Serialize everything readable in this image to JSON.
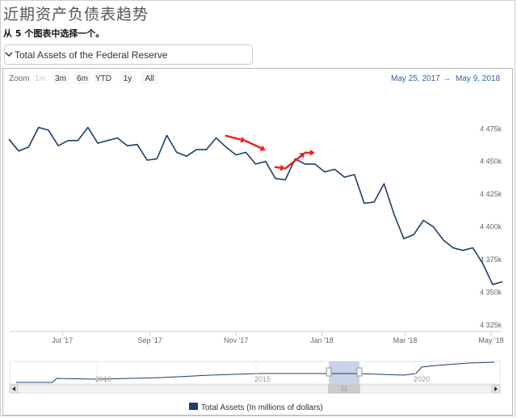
{
  "page": {
    "title": "近期资产负债表趋势",
    "subtitle": "从 5 个图表中选择一个。"
  },
  "selector": {
    "selected": "Total Assets of the Federal Reserve"
  },
  "range_selector": {
    "zoom_label": "Zoom",
    "buttons": [
      {
        "label": "1m",
        "enabled": false
      },
      {
        "label": "3m",
        "enabled": true
      },
      {
        "label": "6m",
        "enabled": true
      },
      {
        "label": "YTD",
        "enabled": true
      },
      {
        "label": "1y",
        "enabled": true
      },
      {
        "label": "All",
        "enabled": true
      }
    ],
    "from": "May 25, 2017",
    "arrow": "→",
    "to": "May 9, 2018"
  },
  "colors": {
    "series": "#1b3f6a",
    "annotation_arrow": "#e8231c",
    "range_text": "#335cad",
    "navigator_mask": "#c9d3e6"
  },
  "chart_data": {
    "type": "line",
    "xlabel": "",
    "ylabel": "",
    "x_ticks": [
      "Jul '17",
      "Sep '17",
      "Nov '17",
      "Jan '18",
      "Mar '18",
      "May '18"
    ],
    "y_ticks": [
      "4 325k",
      "4 350k",
      "4 375k",
      "4 400k",
      "4 425k",
      "4 450k",
      "4 475k"
    ],
    "ylim": [
      4320,
      4490
    ],
    "grid": false,
    "legend": "bottom-center",
    "series": [
      {
        "name": "Total Assets (In millions of dollars)",
        "x": [
          "2017-05-24",
          "2017-05-31",
          "2017-06-07",
          "2017-06-14",
          "2017-06-21",
          "2017-06-28",
          "2017-07-05",
          "2017-07-12",
          "2017-07-19",
          "2017-07-26",
          "2017-08-02",
          "2017-08-09",
          "2017-08-16",
          "2017-08-23",
          "2017-08-30",
          "2017-09-06",
          "2017-09-13",
          "2017-09-20",
          "2017-09-27",
          "2017-10-04",
          "2017-10-11",
          "2017-10-18",
          "2017-10-25",
          "2017-11-01",
          "2017-11-08",
          "2017-11-15",
          "2017-11-22",
          "2017-11-29",
          "2017-12-06",
          "2017-12-13",
          "2017-12-20",
          "2017-12-27",
          "2018-01-03",
          "2018-01-10",
          "2018-01-17",
          "2018-01-24",
          "2018-01-31",
          "2018-02-07",
          "2018-02-14",
          "2018-02-21",
          "2018-02-28",
          "2018-03-07",
          "2018-03-14",
          "2018-03-21",
          "2018-03-28",
          "2018-04-04",
          "2018-04-11",
          "2018-04-18",
          "2018-04-25",
          "2018-05-02",
          "2018-05-09"
        ],
        "values": [
          4467,
          4458,
          4461,
          4476,
          4474,
          4462,
          4466,
          4466,
          4476,
          4464,
          4466,
          4468,
          4462,
          4463,
          4451,
          4452,
          4470,
          4457,
          4454,
          4459,
          4459,
          4468,
          4461,
          4455,
          4457,
          4448,
          4450,
          4437,
          4436,
          4452,
          4448,
          4448,
          4442,
          4444,
          4438,
          4440,
          4418,
          4419,
          4433,
          4410,
          4391,
          4394,
          4405,
          4400,
          4390,
          4384,
          4382,
          4384,
          4372,
          4356,
          4358
        ]
      }
    ],
    "annotations": [
      {
        "type": "arrow",
        "from": "2017-10-25",
        "to": "2017-11-08"
      },
      {
        "type": "arrow",
        "from": "2017-11-08",
        "to": "2017-11-22"
      },
      {
        "type": "arrow",
        "from": "2017-11-29",
        "to": "2017-12-06"
      },
      {
        "type": "arrow",
        "from": "2017-12-06",
        "to": "2017-12-20"
      },
      {
        "type": "arrow",
        "from": "2017-12-20",
        "to": "2017-12-27"
      }
    ],
    "navigator": {
      "x_ticks": [
        "2010",
        "2015",
        "2020"
      ],
      "scroll_label": "III"
    }
  }
}
